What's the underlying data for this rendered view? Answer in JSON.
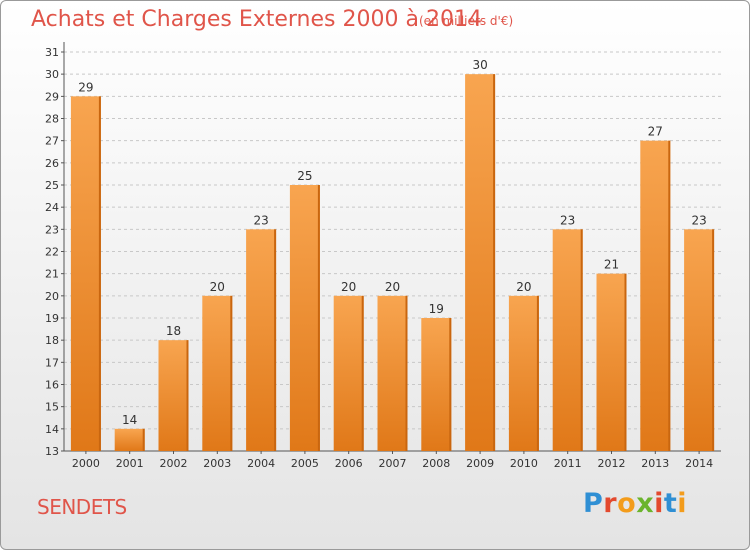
{
  "header": {
    "title": "Achats et Charges Externes 2000 à 2014",
    "subtitle": "(en milliers d'€)"
  },
  "footer": {
    "commune": "SENDETS",
    "logo_text": "Proxiti"
  },
  "colors": {
    "bar_top": "#f8a550",
    "bar_bottom": "#e07818",
    "bar_side": "#c9660f",
    "title": "#e0554a"
  },
  "chart_data": {
    "type": "bar",
    "title": "Achats et Charges Externes 2000 à 2014",
    "subtitle": "(en milliers d'€)",
    "categories": [
      "2000",
      "2001",
      "2002",
      "2003",
      "2004",
      "2005",
      "2006",
      "2007",
      "2008",
      "2009",
      "2010",
      "2011",
      "2012",
      "2013",
      "2014"
    ],
    "values": [
      29,
      14,
      18,
      20,
      23,
      25,
      20,
      20,
      19,
      30,
      20,
      23,
      21,
      27,
      23
    ],
    "ylim": [
      13,
      31
    ],
    "yticks": [
      13,
      14,
      15,
      16,
      17,
      18,
      19,
      20,
      21,
      22,
      23,
      24,
      25,
      26,
      27,
      28,
      29,
      30,
      31
    ],
    "grid": true,
    "legend": "none"
  }
}
